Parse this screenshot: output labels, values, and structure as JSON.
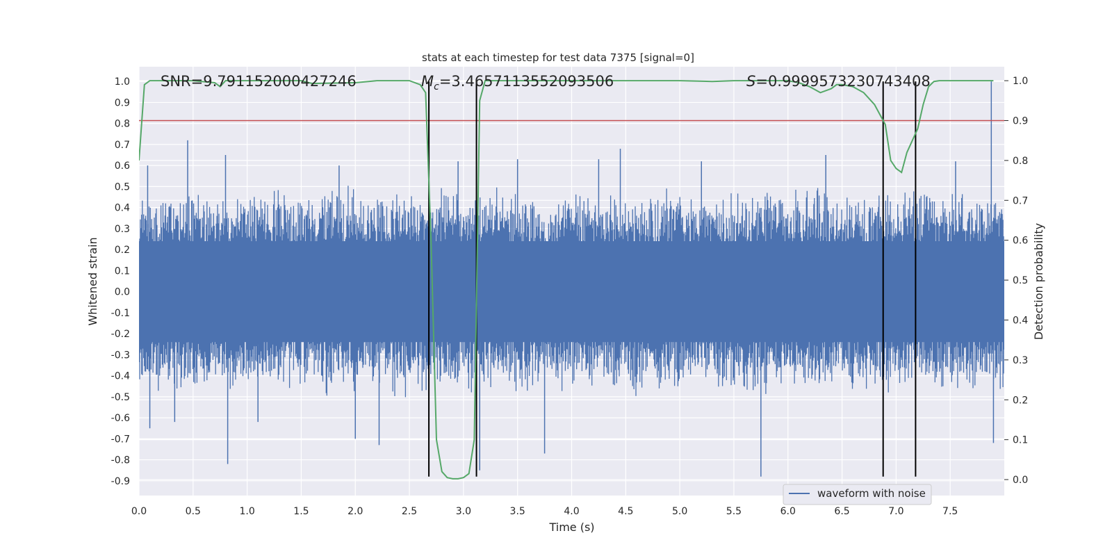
{
  "chart_data": {
    "type": "line",
    "title": "stats at each timestep for test data 7375 [signal=0]",
    "xlabel": "Time (s)",
    "ylabel": "Whitened strain",
    "y2label": "Detection probability",
    "xlim": [
      0.0,
      8.0
    ],
    "ylim": [
      -0.97,
      1.07
    ],
    "y2lim": [
      -0.04,
      1.035
    ],
    "x_ticks": [
      "0.0",
      "0.5",
      "1.0",
      "1.5",
      "2.0",
      "2.5",
      "3.0",
      "3.5",
      "4.0",
      "4.5",
      "5.0",
      "5.5",
      "6.0",
      "6.5",
      "7.0",
      "7.5"
    ],
    "y_ticks": [
      "1.0",
      "0.9",
      "0.8",
      "0.7",
      "0.6",
      "0.5",
      "0.4",
      "0.3",
      "0.2",
      "0.1",
      "0.0",
      "-0.1",
      "-0.2",
      "-0.3",
      "-0.4",
      "-0.5",
      "-0.6",
      "-0.7",
      "-0.8",
      "-0.9"
    ],
    "y2_ticks": [
      "1.0",
      "0.9",
      "0.8",
      "0.7",
      "0.6",
      "0.5",
      "0.4",
      "0.3",
      "0.2",
      "0.1",
      "0.0"
    ],
    "grid": true,
    "annotations": {
      "snr": "SNR=9.791152000427246",
      "mc_symbol": "M",
      "mc_sub": "c",
      "mc_value": "=3.4657113552093506",
      "s_symbol": "S",
      "s_value": "=0.9999573230743408"
    },
    "series": [
      {
        "name": "waveform with noise",
        "axis": "left",
        "color": "#4c72b0",
        "envelope": {
          "x": [
            0.0,
            0.25,
            0.5,
            0.75,
            1.0,
            1.25,
            1.5,
            1.75,
            2.0,
            2.25,
            2.5,
            2.75,
            3.0,
            3.25,
            3.5,
            3.75,
            4.0,
            4.25,
            4.5,
            4.75,
            5.0,
            5.25,
            5.5,
            5.75,
            6.0,
            6.25,
            6.5,
            6.75,
            7.0,
            7.25,
            7.5,
            7.75,
            8.0
          ],
          "upper": [
            0.42,
            0.48,
            0.5,
            0.45,
            0.47,
            0.5,
            0.46,
            0.48,
            0.5,
            0.47,
            0.45,
            0.5,
            0.46,
            0.48,
            0.5,
            0.44,
            0.47,
            0.5,
            0.46,
            0.48,
            0.5,
            0.45,
            0.47,
            0.49,
            0.46,
            0.5,
            0.47,
            0.45,
            0.48,
            0.5,
            0.47,
            0.46,
            0.45
          ],
          "lower": [
            -0.45,
            -0.47,
            -0.5,
            -0.46,
            -0.48,
            -0.45,
            -0.47,
            -0.5,
            -0.46,
            -0.48,
            -0.5,
            -0.44,
            -0.47,
            -0.46,
            -0.5,
            -0.48,
            -0.45,
            -0.47,
            -0.5,
            -0.46,
            -0.48,
            -0.45,
            -0.47,
            -0.5,
            -0.46,
            -0.48,
            -0.45,
            -0.47,
            -0.46,
            -0.48,
            -0.45,
            -0.47,
            -0.46
          ]
        },
        "spikes": [
          [
            0.08,
            0.6
          ],
          [
            0.1,
            -0.65
          ],
          [
            0.45,
            0.72
          ],
          [
            0.33,
            -0.62
          ],
          [
            0.8,
            0.65
          ],
          [
            0.82,
            -0.82
          ],
          [
            1.1,
            -0.62
          ],
          [
            2.0,
            -0.7
          ],
          [
            2.22,
            -0.73
          ],
          [
            1.85,
            0.6
          ],
          [
            2.95,
            0.62
          ],
          [
            3.5,
            0.63
          ],
          [
            3.75,
            -0.77
          ],
          [
            3.15,
            -0.85
          ],
          [
            4.25,
            0.63
          ],
          [
            4.45,
            0.68
          ],
          [
            5.2,
            0.62
          ],
          [
            5.75,
            -0.88
          ],
          [
            6.35,
            0.65
          ],
          [
            7.55,
            0.62
          ],
          [
            7.88,
            1.0
          ],
          [
            7.9,
            -0.72
          ]
        ]
      },
      {
        "name": "",
        "axis": "right",
        "color": "#55a868",
        "x": [
          0.0,
          0.05,
          0.1,
          0.2,
          0.5,
          0.7,
          0.75,
          0.8,
          1.0,
          1.5,
          1.6,
          2.0,
          2.2,
          2.5,
          2.6,
          2.65,
          2.7,
          2.75,
          2.8,
          2.85,
          2.9,
          2.95,
          3.0,
          3.05,
          3.1,
          3.15,
          3.2,
          3.3,
          3.5,
          4.0,
          4.5,
          5.0,
          5.3,
          5.5,
          6.0,
          6.1,
          6.2,
          6.3,
          6.4,
          6.45,
          6.5,
          6.6,
          6.7,
          6.8,
          6.9,
          6.95,
          7.0,
          7.05,
          7.1,
          7.15,
          7.2,
          7.25,
          7.3,
          7.35,
          7.4,
          7.5,
          7.9
        ],
        "values": [
          0.8,
          0.99,
          1.0,
          1.0,
          1.0,
          0.995,
          0.985,
          1.0,
          1.0,
          1.0,
          0.993,
          0.995,
          1.0,
          1.0,
          0.99,
          0.97,
          0.6,
          0.1,
          0.02,
          0.005,
          0.002,
          0.002,
          0.005,
          0.015,
          0.1,
          0.95,
          1.0,
          1.0,
          1.0,
          1.0,
          1.0,
          1.0,
          0.998,
          1.0,
          1.0,
          0.995,
          0.985,
          0.97,
          0.98,
          0.99,
          0.99,
          0.985,
          0.97,
          0.94,
          0.89,
          0.8,
          0.78,
          0.77,
          0.82,
          0.85,
          0.88,
          0.94,
          0.985,
          0.998,
          1.0,
          1.0,
          1.0
        ]
      }
    ],
    "threshold": {
      "value": 0.9,
      "axis": "right",
      "color": "#c44e52"
    },
    "markers": {
      "x": [
        2.68,
        3.12,
        6.88,
        7.18
      ],
      "ymin": -0.88,
      "ymax": 1.0,
      "color": "#000000"
    },
    "legend": {
      "placement": "bottom-right",
      "entries": [
        "waveform with noise"
      ]
    }
  }
}
